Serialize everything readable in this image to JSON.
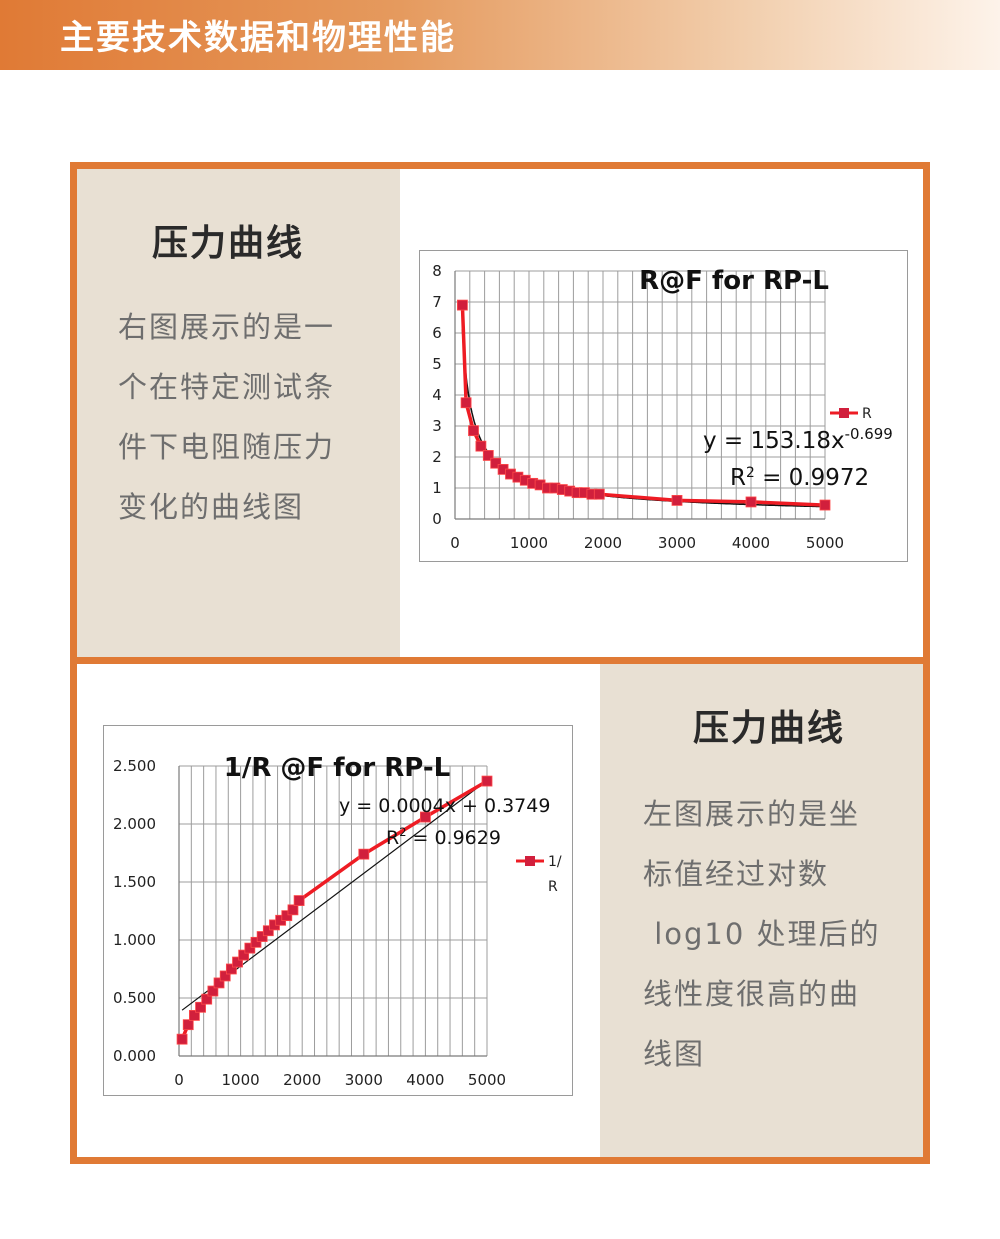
{
  "header": {
    "title": "主要技术数据和物理性能"
  },
  "section_top": {
    "heading": "压力曲线",
    "description_lines": [
      "右图展示的是一",
      "个在特定测试条",
      "件下电阻随压力",
      "变化的曲线图"
    ]
  },
  "section_bottom": {
    "heading": "压力曲线",
    "description_lines": [
      "左图展示的是坐",
      "标值经过对数",
      " log10 处理后的",
      "线性度很高的曲",
      "线图"
    ]
  },
  "colors": {
    "accent": "#e07a35",
    "panel": "#e8e0d3",
    "series": "#ee1c24",
    "marker": "#d11f3c"
  },
  "chart_data": [
    {
      "type": "line",
      "title": "R@F  for RP-L",
      "xlim": [
        0,
        5000
      ],
      "ylim": [
        0,
        8
      ],
      "xticks": [
        "0",
        "1000",
        "2000",
        "3000",
        "4000",
        "5000"
      ],
      "yticks": [
        "0",
        "1",
        "2",
        "3",
        "4",
        "5",
        "6",
        "7",
        "8"
      ],
      "grid": true,
      "legend_position": "right",
      "series": [
        {
          "name": "R",
          "x": [
            100,
            150,
            250,
            350,
            450,
            550,
            650,
            750,
            850,
            950,
            1050,
            1150,
            1250,
            1350,
            1450,
            1550,
            1650,
            1750,
            1850,
            1950,
            3000,
            4000,
            5000
          ],
          "y": [
            6.9,
            3.75,
            2.85,
            2.35,
            2.05,
            1.8,
            1.6,
            1.45,
            1.35,
            1.25,
            1.15,
            1.1,
            1.0,
            1.0,
            0.95,
            0.9,
            0.85,
            0.85,
            0.8,
            0.8,
            0.6,
            0.55,
            0.45
          ]
        }
      ],
      "trendline": {
        "type": "power",
        "a": 153.18,
        "b": -0.699
      },
      "equation_text": "y = 153.18x",
      "equation_exponent": "-0.699",
      "r2_label": "R",
      "r2_sup": "2",
      "r2_value_text": " = 0.9972"
    },
    {
      "type": "line",
      "title": "1/R @F for RP-L",
      "xlim": [
        0,
        5000
      ],
      "ylim": [
        0,
        2.5
      ],
      "xticks": [
        "0",
        "1000",
        "2000",
        "3000",
        "4000",
        "5000"
      ],
      "yticks": [
        "0.000",
        "0.500",
        "1.000",
        "1.500",
        "2.000",
        "2.500"
      ],
      "grid": true,
      "legend_position": "right",
      "series": [
        {
          "name": "1/R",
          "x": [
            50,
            150,
            250,
            350,
            450,
            550,
            650,
            750,
            850,
            950,
            1050,
            1150,
            1250,
            1350,
            1450,
            1550,
            1650,
            1750,
            1850,
            1950,
            3000,
            4000,
            5000
          ],
          "y": [
            0.145,
            0.27,
            0.35,
            0.42,
            0.49,
            0.56,
            0.63,
            0.69,
            0.75,
            0.81,
            0.87,
            0.93,
            0.98,
            1.03,
            1.08,
            1.13,
            1.17,
            1.21,
            1.26,
            1.34,
            1.74,
            2.06,
            2.37
          ]
        }
      ],
      "trendline": {
        "type": "linear",
        "slope": 0.0004,
        "intercept": 0.3749
      },
      "equation_text": "y = 0.0004x + 0.3749",
      "r2_label": "R",
      "r2_sup": "2",
      "r2_value_text": " = 0.9629"
    }
  ]
}
